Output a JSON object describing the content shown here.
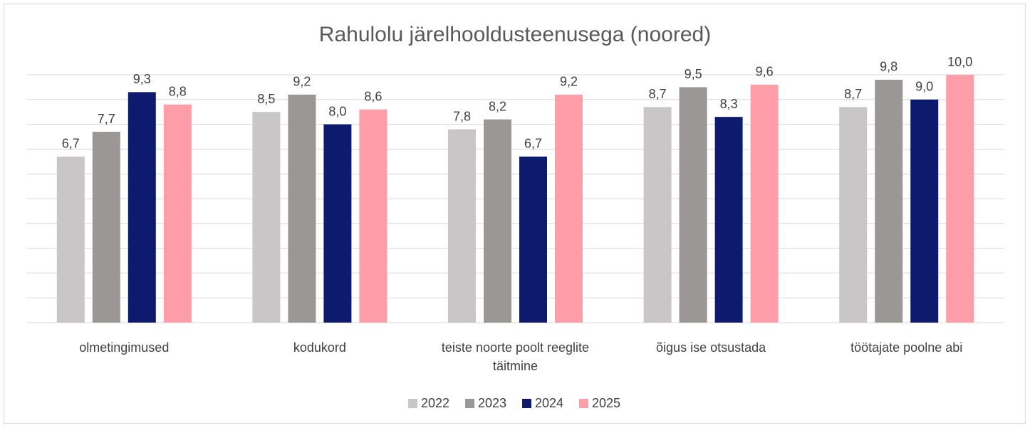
{
  "chart_data": {
    "type": "bar",
    "title": "Rahulolu järelhooldusteenusega (noored)",
    "categories": [
      "olmetingimused",
      "kodukord",
      "teiste noorte poolt reeglite täitmine",
      "õigus ise otsustada",
      "töötajate poolne abi"
    ],
    "series": [
      {
        "name": "2022",
        "color": "#c8c6c6",
        "values": [
          6.7,
          8.5,
          7.8,
          8.7,
          8.7
        ],
        "value_labels": [
          "6,7",
          "8,5",
          "7,8",
          "8,7",
          "8,7"
        ]
      },
      {
        "name": "2023",
        "color": "#9b9797",
        "values": [
          7.7,
          9.2,
          8.2,
          9.5,
          9.8
        ],
        "value_labels": [
          "7,7",
          "9,2",
          "8,2",
          "9,5",
          "9,8"
        ]
      },
      {
        "name": "2024",
        "color": "#0d1a6e",
        "values": [
          9.3,
          8.0,
          6.7,
          8.3,
          9.0
        ],
        "value_labels": [
          "9,3",
          "8,0",
          "6,7",
          "8,3",
          "9,0"
        ]
      },
      {
        "name": "2025",
        "color": "#ff9ea8",
        "values": [
          8.8,
          8.6,
          9.2,
          9.6,
          10.0
        ],
        "value_labels": [
          "8,8",
          "8,6",
          "9,2",
          "9,6",
          "10,0"
        ]
      }
    ],
    "ylim": [
      0,
      10
    ],
    "yticks": [
      0,
      1,
      2,
      3,
      4,
      5,
      6,
      7,
      8,
      9,
      10
    ],
    "grid": true,
    "legend": "bottom"
  }
}
